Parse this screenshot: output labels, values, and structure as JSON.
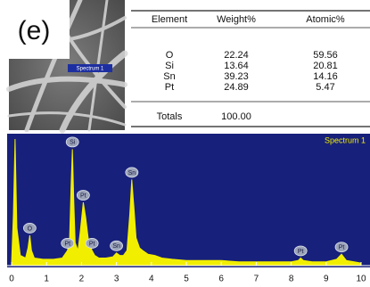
{
  "panel_label": "(e)",
  "image_label": "Spectrum 1",
  "table": {
    "header": [
      "Element",
      "Weight%",
      "Atomic%"
    ],
    "rows": [
      [
        "O",
        "22.24",
        "59.56"
      ],
      [
        "Si",
        "13.64",
        "20.81"
      ],
      [
        "Sn",
        "39.23",
        "14.16"
      ],
      [
        "Pt",
        "24.89",
        "5.47"
      ]
    ],
    "totals": [
      "Totals",
      "100.00"
    ],
    "highlight_row": 3,
    "highlight_color": "#e8231e"
  },
  "chart_data": {
    "type": "area",
    "title": "Spectrum 1",
    "color": "#f2ee00",
    "background": "#17207a",
    "x": [
      0,
      0.05,
      0.1,
      0.15,
      0.25,
      0.4,
      0.47,
      0.52,
      0.57,
      0.65,
      0.9,
      1.2,
      1.45,
      1.6,
      1.66,
      1.7,
      1.74,
      1.78,
      1.82,
      1.9,
      1.97,
      2.05,
      2.12,
      2.2,
      2.3,
      2.38,
      2.5,
      2.7,
      2.9,
      3.0,
      3.1,
      3.2,
      3.3,
      3.38,
      3.44,
      3.5,
      3.56,
      3.66,
      3.75,
      3.9,
      4.1,
      4.3,
      4.6,
      5,
      5.5,
      6,
      6.5,
      7,
      7.5,
      8,
      8.2,
      8.27,
      8.35,
      8.6,
      9,
      9.3,
      9.44,
      9.58,
      9.8,
      10
    ],
    "values": [
      2,
      40,
      100,
      30,
      8,
      6,
      14,
      24,
      12,
      6,
      5,
      5,
      6,
      12,
      22,
      60,
      92,
      50,
      18,
      12,
      28,
      50,
      38,
      20,
      12,
      8,
      6,
      6,
      7,
      10,
      8,
      8,
      12,
      40,
      68,
      46,
      22,
      14,
      12,
      9,
      8,
      6,
      5,
      4,
      4,
      4,
      3,
      3,
      3,
      3,
      4,
      6,
      4,
      3,
      3,
      5,
      9,
      4,
      3,
      2
    ],
    "xlim": [
      0,
      10
    ],
    "xticks": [
      0,
      1,
      2,
      3,
      4,
      5,
      6,
      7,
      8,
      9,
      10
    ],
    "ylim": [
      0,
      100
    ],
    "annotations": [
      {
        "text": "O",
        "x": 0.52
      },
      {
        "text": "Pt",
        "x": 1.6
      },
      {
        "text": "Si",
        "x": 1.74
      },
      {
        "text": "Pt",
        "x": 2.05
      },
      {
        "text": "Pt",
        "x": 2.3
      },
      {
        "text": "Sn",
        "x": 3.0
      },
      {
        "text": "Sn",
        "x": 3.44
      },
      {
        "text": "Pt",
        "x": 8.27
      },
      {
        "text": "Pt",
        "x": 9.44
      }
    ]
  }
}
